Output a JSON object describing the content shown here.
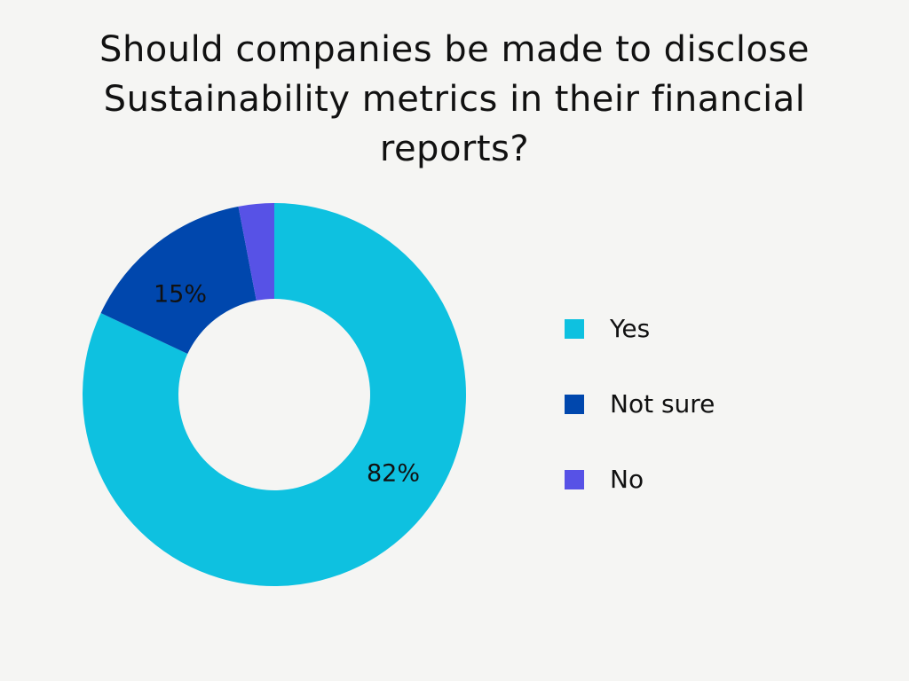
{
  "title": [
    "Should companies be made to disclose",
    "Sustainability metrics in their financial",
    "reports?"
  ],
  "chart_data": {
    "type": "pie",
    "variant": "donut",
    "categories": [
      "Yes",
      "Not sure",
      "No"
    ],
    "values": [
      82,
      15,
      3
    ],
    "unit": "%",
    "colors": [
      "#0ec1e0",
      "#0047ad",
      "#5752e6"
    ],
    "data_labels": [
      "82%",
      "15%",
      ""
    ],
    "legend": "right"
  }
}
